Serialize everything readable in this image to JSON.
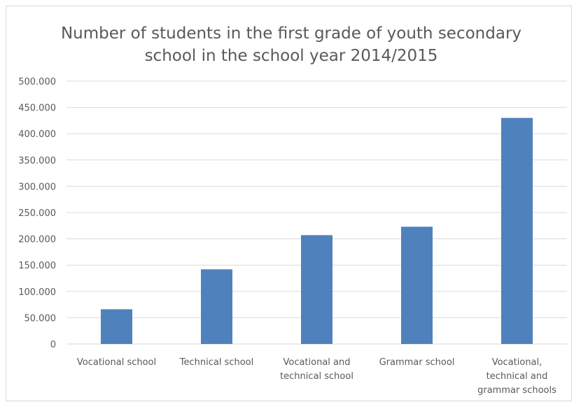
{
  "chart_data": {
    "type": "bar",
    "title_lines": [
      "Number of students in the first grade of youth secondary",
      "school in the school year 2014/2015"
    ],
    "categories": [
      [
        "Vocational school"
      ],
      [
        "Technical school"
      ],
      [
        "Vocational and",
        "technical school"
      ],
      [
        "Grammar school"
      ],
      [
        "Vocational,",
        "technical and",
        "grammar schools"
      ]
    ],
    "values": [
      66000,
      142000,
      207000,
      223000,
      430000
    ],
    "ylim": [
      0,
      500000
    ],
    "y_ticks": [
      {
        "value": 0,
        "label": "0"
      },
      {
        "value": 50000,
        "label": "50.000"
      },
      {
        "value": 100000,
        "label": "100.000"
      },
      {
        "value": 150000,
        "label": "150.000"
      },
      {
        "value": 200000,
        "label": "200.000"
      },
      {
        "value": 250000,
        "label": "250.000"
      },
      {
        "value": 300000,
        "label": "300.000"
      },
      {
        "value": 350000,
        "label": "350.000"
      },
      {
        "value": 400000,
        "label": "400.000"
      },
      {
        "value": 450000,
        "label": "450.000"
      },
      {
        "value": 500000,
        "label": "500.000"
      }
    ],
    "grid": true,
    "legend": "none",
    "bar_color": "#4f81bd",
    "grid_color": "#d9d9d9",
    "text_color": "#595959"
  }
}
